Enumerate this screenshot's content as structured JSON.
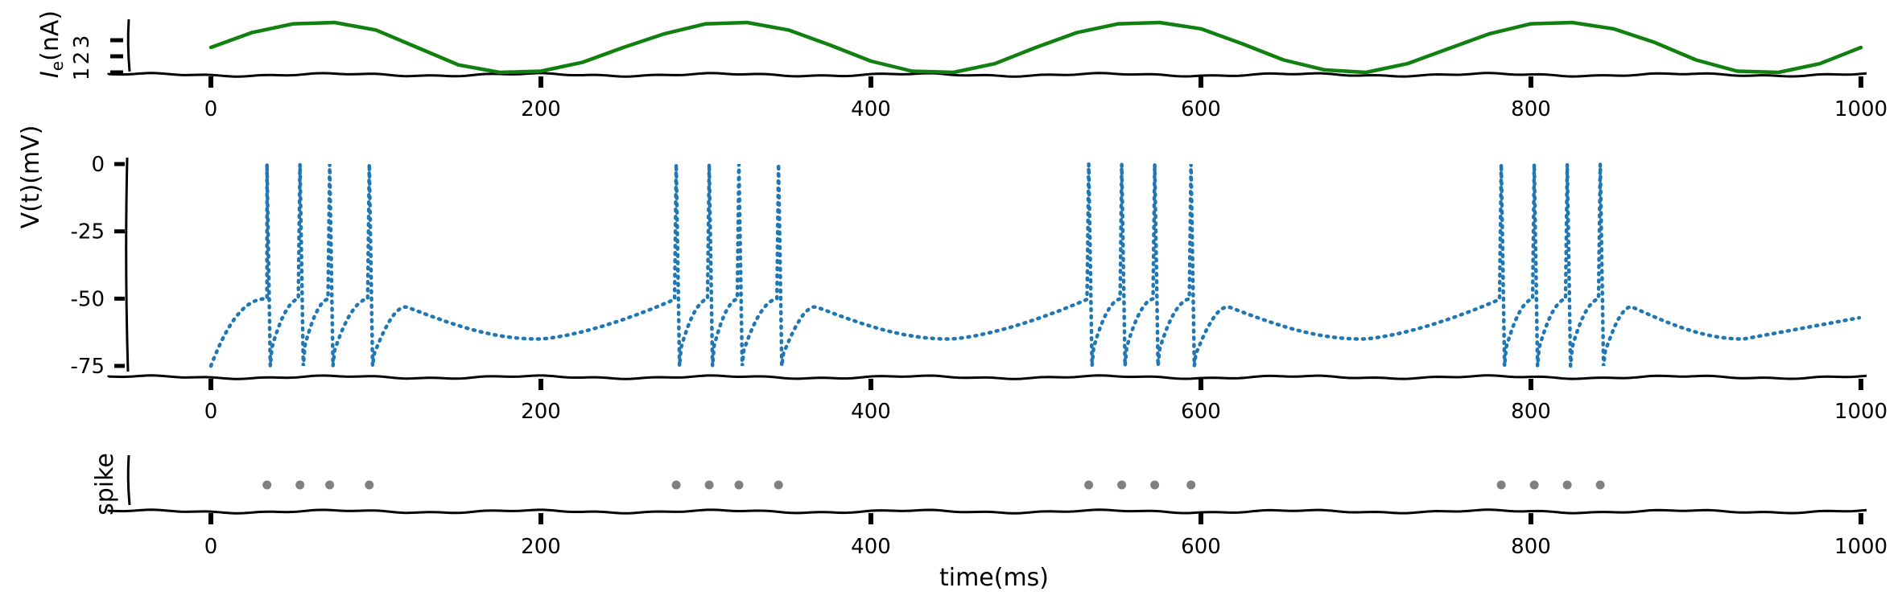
{
  "chart_data": [
    {
      "type": "line",
      "title": "",
      "ylabel_main": "I",
      "ylabel_sub": "e",
      "ylabel_rest": "(nA)",
      "xlim": [
        0,
        1000
      ],
      "ylim": [
        0,
        3
      ],
      "xticks": [
        0,
        200,
        400,
        600,
        800,
        1000
      ],
      "xtick_labels": [
        "0",
        "200",
        "400",
        "600",
        "800",
        "1000"
      ],
      "yticks": [
        1,
        2,
        3
      ],
      "ytick_labels": [
        "1",
        "2",
        "3"
      ],
      "color": "#118011",
      "series": [
        {
          "x": [
            0,
            25,
            50,
            75,
            100,
            125,
            150,
            175,
            200,
            225,
            250,
            275,
            300,
            325,
            350,
            375,
            400,
            425,
            450,
            475,
            500,
            525,
            550,
            575,
            600,
            625,
            650,
            675,
            700,
            725,
            750,
            775,
            800,
            825,
            850,
            875,
            900,
            925,
            950,
            975,
            1000
          ],
          "y": [
            1.0,
            1.6,
            1.95,
            2.0,
            1.7,
            1.0,
            0.3,
            0.0,
            0.05,
            0.4,
            1.0,
            1.55,
            1.95,
            2.0,
            1.7,
            1.1,
            0.45,
            0.05,
            0.0,
            0.35,
            1.0,
            1.6,
            1.95,
            2.0,
            1.75,
            1.15,
            0.5,
            0.1,
            0.0,
            0.35,
            0.95,
            1.55,
            1.95,
            2.0,
            1.75,
            1.2,
            0.5,
            0.05,
            0.0,
            0.35,
            1.0
          ]
        }
      ]
    },
    {
      "type": "line",
      "ylabel": "V(t)(mV)",
      "xlim": [
        0,
        1000
      ],
      "ylim": [
        -75,
        0
      ],
      "xticks": [
        0,
        200,
        400,
        600,
        800,
        1000
      ],
      "xtick_labels": [
        "0",
        "200",
        "400",
        "600",
        "800",
        "1000"
      ],
      "yticks": [
        0,
        -25,
        -50,
        -75
      ],
      "ytick_labels": [
        "0",
        "-25",
        "-50",
        "-75"
      ],
      "color": "#1f77b4",
      "line_style": "dotted",
      "resting_potential": -65,
      "threshold": -50,
      "reset": -75,
      "peak": 0,
      "spike_times": [
        34,
        54,
        72,
        96,
        282,
        302,
        320,
        344,
        532,
        552,
        572,
        594,
        782,
        802,
        822,
        842
      ],
      "burst_ends": [
        {
          "t": 96,
          "end": 350
        },
        {
          "t": 344,
          "end": 600
        },
        {
          "t": 594,
          "end": 850
        },
        {
          "t": 842,
          "end": 1000
        }
      ]
    },
    {
      "type": "scatter",
      "ylabel": "spike",
      "xlim": [
        0,
        1000
      ],
      "xticks": [
        0,
        200,
        400,
        600,
        800,
        1000
      ],
      "xtick_labels": [
        "0",
        "200",
        "400",
        "600",
        "800",
        "1000"
      ],
      "xlabel": "time(ms)",
      "color": "#808080",
      "x": [
        34,
        54,
        72,
        96,
        282,
        302,
        320,
        344,
        532,
        552,
        572,
        594,
        782,
        802,
        822,
        842
      ],
      "y": [
        1,
        1,
        1,
        1,
        1,
        1,
        1,
        1,
        1,
        1,
        1,
        1,
        1,
        1,
        1,
        1
      ]
    }
  ]
}
